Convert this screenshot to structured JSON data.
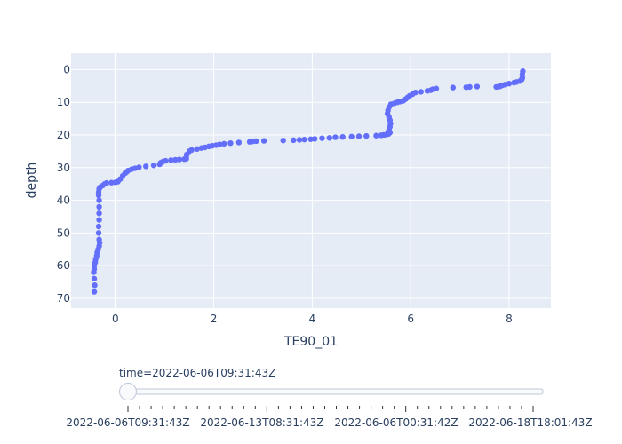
{
  "chart_data": {
    "type": "scatter",
    "xlabel": "TE90_01",
    "ylabel": "depth",
    "xlim": [
      -0.9,
      8.85
    ],
    "ylim": [
      73,
      -5
    ],
    "y_reversed": true,
    "grid": true,
    "x_ticks": [
      0,
      2,
      4,
      6,
      8
    ],
    "y_ticks": [
      0,
      10,
      20,
      30,
      40,
      50,
      60,
      70
    ],
    "marker_color": "#636efa",
    "plot_bg": "#e5ecf6",
    "series": [
      {
        "x": [
          8.28,
          8.27,
          8.27,
          8.26,
          8.22,
          8.15,
          8.1,
          8.0,
          7.92,
          7.86,
          7.83,
          7.8,
          7.74,
          7.35,
          7.2,
          7.13,
          6.86,
          6.52,
          6.45,
          6.41,
          6.34,
          6.21,
          6.1,
          6.04,
          5.98,
          5.94,
          5.9,
          5.87,
          5.84,
          5.78,
          5.73,
          5.67,
          5.6,
          5.56,
          5.54,
          5.53,
          5.56,
          5.58,
          5.59,
          5.58,
          5.56,
          5.55,
          5.58,
          5.56,
          5.55,
          5.5,
          5.45,
          5.4,
          5.3,
          5.1,
          4.95,
          4.8,
          4.62,
          4.47,
          4.35,
          4.2,
          4.05,
          3.97,
          3.84,
          3.74,
          3.62,
          3.41,
          3.02,
          2.86,
          2.78,
          2.73,
          2.51,
          2.34,
          2.21,
          2.12,
          2.05,
          1.97,
          1.9,
          1.82,
          1.75,
          1.66,
          1.55,
          1.5,
          1.45,
          1.44,
          1.44,
          1.4,
          1.3,
          1.22,
          1.13,
          1.02,
          0.96,
          0.92,
          0.9,
          0.78,
          0.62,
          0.48,
          0.4,
          0.33,
          0.26,
          0.23,
          0.2,
          0.15,
          0.1,
          0.05,
          0.0,
          -0.08,
          -0.18,
          -0.22,
          -0.26,
          -0.31,
          -0.33,
          -0.34,
          -0.34,
          -0.33,
          -0.33,
          -0.33,
          -0.33,
          -0.34,
          -0.34,
          -0.33,
          -0.32,
          -0.33,
          -0.35,
          -0.37,
          -0.38,
          -0.4,
          -0.41,
          -0.43,
          -0.43,
          -0.44,
          -0.43,
          -0.42,
          -0.43
        ],
        "y": [
          0.5,
          1.5,
          2.5,
          3.0,
          3.5,
          3.8,
          4.0,
          4.3,
          4.6,
          4.8,
          5.0,
          5.2,
          5.3,
          5.2,
          5.3,
          5.4,
          5.5,
          5.8,
          6.0,
          6.3,
          6.5,
          6.8,
          7.0,
          7.5,
          8.0,
          8.5,
          9.0,
          9.3,
          9.6,
          9.8,
          10.0,
          10.3,
          10.6,
          11.5,
          12.5,
          13.5,
          14.5,
          15.5,
          16.5,
          17.5,
          18.5,
          19.0,
          19.3,
          19.5,
          19.7,
          19.9,
          20.0,
          20.1,
          20.2,
          20.3,
          20.4,
          20.5,
          20.6,
          20.7,
          20.9,
          21.0,
          21.2,
          21.3,
          21.4,
          21.5,
          21.6,
          21.7,
          21.8,
          21.9,
          22.0,
          22.1,
          22.3,
          22.5,
          22.7,
          22.9,
          23.1,
          23.3,
          23.5,
          23.8,
          24.0,
          24.3,
          24.6,
          25.0,
          26.0,
          27.0,
          27.3,
          27.4,
          27.5,
          27.6,
          27.7,
          27.9,
          28.2,
          28.5,
          29.0,
          29.3,
          29.6,
          29.9,
          30.2,
          30.5,
          30.9,
          31.3,
          31.7,
          32.5,
          33.5,
          34.3,
          34.5,
          34.6,
          34.7,
          35.0,
          35.5,
          36.0,
          36.5,
          37.5,
          38.5,
          40,
          42,
          44,
          46,
          48,
          50,
          52,
          53,
          54,
          55,
          56,
          57,
          58,
          59,
          60,
          61,
          62,
          64,
          66,
          68
        ]
      }
    ]
  },
  "slider": {
    "current_label": "time=2022-06-06T09:31:43Z",
    "steps": [
      "2022-06-06T09:31:43Z",
      "2022-06-13T08:31:43Z",
      "2022-06-06T00:31:42Z",
      "2022-06-18T18:01:43Z"
    ]
  }
}
